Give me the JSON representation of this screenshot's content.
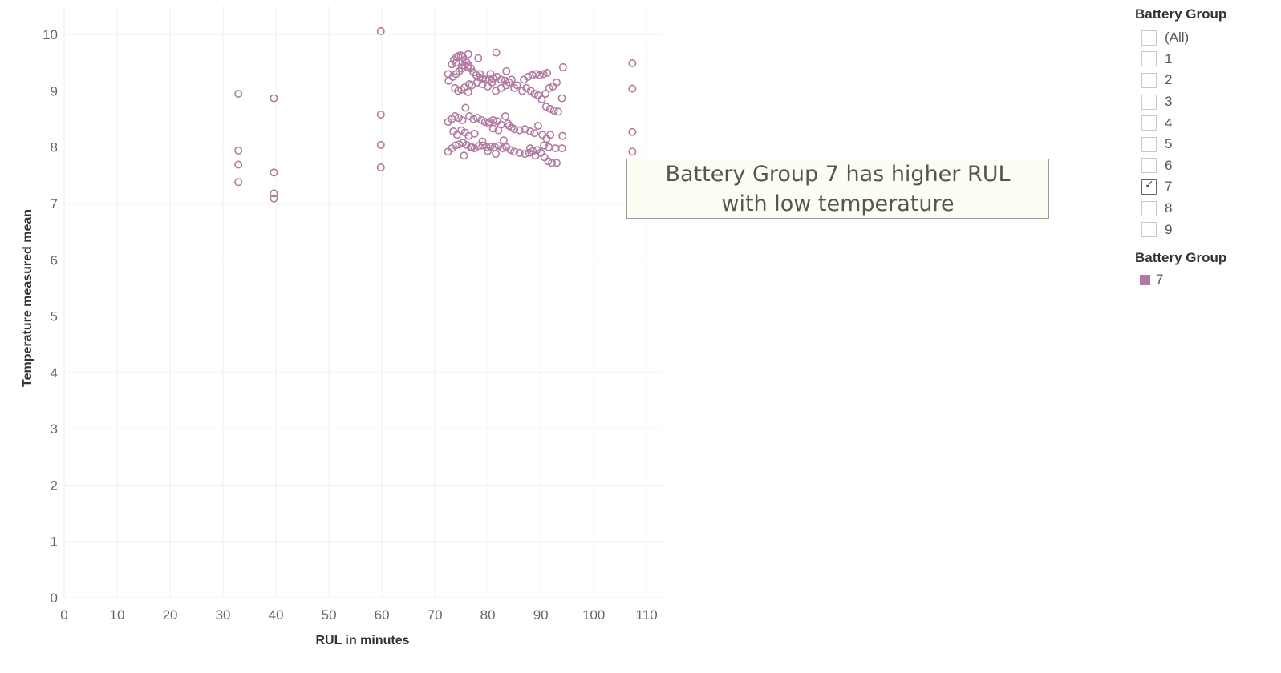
{
  "chart_data": {
    "type": "scatter",
    "xlabel": "RUL in minutes",
    "ylabel": "Temperature measured mean",
    "xlim": [
      0,
      113
    ],
    "ylim": [
      0,
      10.5
    ],
    "x_ticks": [
      0,
      10,
      20,
      30,
      40,
      50,
      60,
      70,
      80,
      90,
      100,
      110
    ],
    "y_ticks": [
      0,
      1,
      2,
      3,
      4,
      5,
      6,
      7,
      8,
      9,
      10
    ],
    "grid": true,
    "series": [
      {
        "name": "7",
        "color": "#b07aa1",
        "points": [
          [
            32.9,
            8.95
          ],
          [
            32.9,
            7.94
          ],
          [
            32.9,
            7.69
          ],
          [
            32.9,
            7.38
          ],
          [
            39.6,
            8.87
          ],
          [
            39.6,
            7.55
          ],
          [
            39.6,
            7.18
          ],
          [
            39.6,
            7.09
          ],
          [
            59.8,
            10.06
          ],
          [
            59.8,
            8.58
          ],
          [
            59.8,
            8.04
          ],
          [
            59.8,
            7.64
          ],
          [
            107.3,
            9.49
          ],
          [
            107.3,
            9.04
          ],
          [
            107.3,
            8.27
          ],
          [
            107.3,
            7.92
          ],
          [
            72.5,
            9.3
          ],
          [
            72.6,
            9.18
          ],
          [
            73.2,
            9.47
          ],
          [
            73.6,
            9.55
          ],
          [
            74.1,
            9.6
          ],
          [
            74.5,
            9.62
          ],
          [
            74.9,
            9.63
          ],
          [
            75.3,
            9.6
          ],
          [
            75.7,
            9.55
          ],
          [
            76.0,
            9.5
          ],
          [
            76.4,
            9.45
          ],
          [
            76.8,
            9.4
          ],
          [
            77.3,
            9.33
          ],
          [
            77.8,
            9.28
          ],
          [
            78.4,
            9.24
          ],
          [
            79.0,
            9.22
          ],
          [
            79.6,
            9.2
          ],
          [
            80.3,
            9.2
          ],
          [
            81.0,
            9.22
          ],
          [
            81.7,
            9.25
          ],
          [
            82.5,
            9.2
          ],
          [
            83.3,
            9.18
          ],
          [
            84.0,
            9.15
          ],
          [
            73.4,
            9.25
          ],
          [
            74.0,
            9.3
          ],
          [
            74.6,
            9.35
          ],
          [
            75.1,
            9.4
          ],
          [
            75.6,
            9.45
          ],
          [
            76.2,
            9.42
          ],
          [
            73.8,
            9.05
          ],
          [
            74.4,
            9.0
          ],
          [
            75.0,
            9.02
          ],
          [
            75.6,
            9.06
          ],
          [
            76.3,
            8.98
          ],
          [
            77.0,
            9.1
          ],
          [
            78.0,
            9.15
          ],
          [
            79.0,
            9.12
          ],
          [
            80.0,
            9.08
          ],
          [
            81.5,
            9.0
          ],
          [
            82.5,
            9.05
          ],
          [
            83.5,
            9.1
          ],
          [
            84.5,
            9.2
          ],
          [
            85.5,
            9.1
          ],
          [
            86.5,
            9.0
          ],
          [
            87.3,
            9.05
          ],
          [
            88.1,
            9.0
          ],
          [
            88.8,
            8.95
          ],
          [
            89.5,
            8.92
          ],
          [
            90.2,
            8.85
          ],
          [
            90.9,
            8.95
          ],
          [
            91.6,
            9.05
          ],
          [
            92.3,
            9.08
          ],
          [
            86.8,
            9.2
          ],
          [
            87.6,
            9.25
          ],
          [
            88.4,
            9.28
          ],
          [
            89.1,
            9.3
          ],
          [
            89.8,
            9.28
          ],
          [
            90.5,
            9.3
          ],
          [
            91.2,
            9.32
          ],
          [
            93.0,
            9.15
          ],
          [
            94.2,
            9.42
          ],
          [
            94.0,
            8.87
          ],
          [
            81.6,
            9.68
          ],
          [
            78.2,
            9.58
          ],
          [
            76.3,
            9.65
          ],
          [
            83.5,
            9.35
          ],
          [
            80.5,
            9.3
          ],
          [
            74.0,
            9.5
          ],
          [
            75.2,
            9.52
          ],
          [
            76.5,
            9.12
          ],
          [
            78.5,
            9.3
          ],
          [
            80.8,
            9.15
          ],
          [
            85.0,
            9.05
          ],
          [
            91.0,
            8.72
          ],
          [
            91.8,
            8.68
          ],
          [
            92.5,
            8.65
          ],
          [
            93.3,
            8.63
          ],
          [
            72.5,
            8.45
          ],
          [
            73.2,
            8.5
          ],
          [
            73.8,
            8.55
          ],
          [
            74.5,
            8.52
          ],
          [
            75.2,
            8.48
          ],
          [
            75.8,
            8.7
          ],
          [
            76.5,
            8.55
          ],
          [
            77.3,
            8.5
          ],
          [
            78.0,
            8.52
          ],
          [
            78.8,
            8.48
          ],
          [
            79.5,
            8.45
          ],
          [
            80.3,
            8.45
          ],
          [
            81.0,
            8.48
          ],
          [
            81.8,
            8.46
          ],
          [
            82.5,
            8.4
          ],
          [
            83.3,
            8.55
          ],
          [
            84.0,
            8.38
          ],
          [
            85.0,
            8.32
          ],
          [
            86.0,
            8.3
          ],
          [
            87.0,
            8.32
          ],
          [
            88.0,
            8.28
          ],
          [
            88.8,
            8.25
          ],
          [
            89.5,
            8.38
          ],
          [
            90.3,
            8.22
          ],
          [
            91.1,
            8.15
          ],
          [
            91.8,
            8.22
          ],
          [
            94.1,
            8.2
          ],
          [
            73.5,
            8.28
          ],
          [
            74.2,
            8.22
          ],
          [
            75.0,
            8.3
          ],
          [
            75.7,
            8.26
          ],
          [
            76.4,
            8.2
          ],
          [
            77.5,
            8.24
          ],
          [
            81.0,
            8.33
          ],
          [
            84.5,
            8.35
          ],
          [
            80.2,
            8.42
          ],
          [
            83.8,
            8.42
          ],
          [
            82.0,
            8.3
          ],
          [
            72.5,
            7.92
          ],
          [
            73.2,
            7.98
          ],
          [
            73.9,
            8.03
          ],
          [
            74.6,
            8.05
          ],
          [
            75.3,
            8.08
          ],
          [
            76.0,
            8.04
          ],
          [
            76.8,
            8.0
          ],
          [
            77.5,
            7.98
          ],
          [
            78.3,
            8.02
          ],
          [
            79.0,
            8.03
          ],
          [
            79.8,
            8.0
          ],
          [
            80.5,
            8.01
          ],
          [
            81.3,
            8.0
          ],
          [
            82.0,
            8.02
          ],
          [
            82.8,
            7.98
          ],
          [
            83.5,
            8.0
          ],
          [
            84.3,
            7.95
          ],
          [
            85.0,
            7.92
          ],
          [
            86.0,
            7.9
          ],
          [
            87.0,
            7.88
          ],
          [
            87.8,
            7.9
          ],
          [
            88.5,
            7.93
          ],
          [
            89.3,
            7.95
          ],
          [
            90.0,
            7.9
          ],
          [
            90.7,
            7.82
          ],
          [
            91.4,
            7.75
          ],
          [
            92.1,
            7.72
          ],
          [
            93.0,
            7.72
          ],
          [
            94.0,
            7.98
          ],
          [
            92.8,
            7.98
          ],
          [
            91.5,
            8.0
          ],
          [
            90.6,
            8.03
          ],
          [
            75.5,
            7.85
          ],
          [
            81.5,
            7.88
          ],
          [
            83.0,
            8.12
          ],
          [
            79.0,
            8.1
          ],
          [
            77.0,
            8.0
          ],
          [
            80.0,
            7.93
          ],
          [
            88.0,
            7.98
          ],
          [
            89.0,
            7.85
          ]
        ]
      }
    ]
  },
  "annotation": {
    "text": "Battery Group 7 has higher RUL with low temperature"
  },
  "filter": {
    "title": "Battery Group",
    "items": [
      {
        "label": "(All)",
        "checked": false
      },
      {
        "label": "1",
        "checked": false
      },
      {
        "label": "2",
        "checked": false
      },
      {
        "label": "3",
        "checked": false
      },
      {
        "label": "4",
        "checked": false
      },
      {
        "label": "5",
        "checked": false
      },
      {
        "label": "6",
        "checked": false
      },
      {
        "label": "7",
        "checked": true
      },
      {
        "label": "8",
        "checked": false
      },
      {
        "label": "9",
        "checked": false
      }
    ]
  },
  "legend": {
    "title": "Battery Group",
    "items": [
      {
        "label": "7",
        "color": "#b07aa1"
      }
    ]
  }
}
